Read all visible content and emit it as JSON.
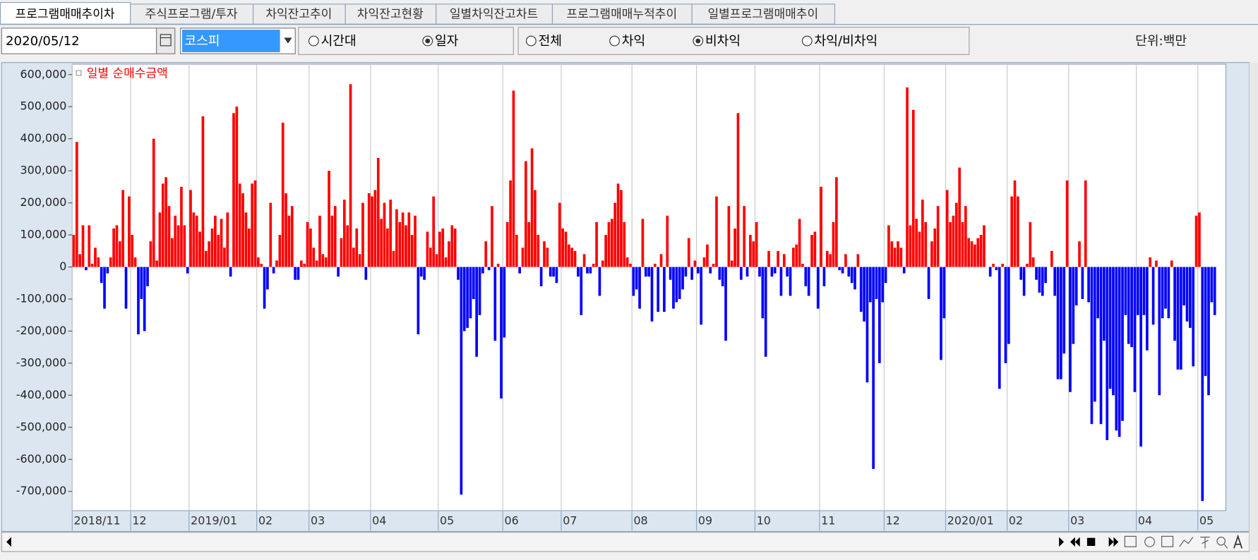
{
  "tabs": [
    "프로그램매매추이차",
    "주식프로그램/투자",
    "차익잔고추이",
    "차익잔고현황",
    "일별차익잔고차트",
    "프로그램매매누적추이",
    "일별프로그램매매추이"
  ],
  "toolbar": {
    "date": "2020/05/12",
    "market": "코스피",
    "mode_options": [
      {
        "label": "시간대",
        "selected": false
      },
      {
        "label": "일자",
        "selected": true
      }
    ],
    "type_options": [
      {
        "label": "전체",
        "selected": false
      },
      {
        "label": "차익",
        "selected": false
      },
      {
        "label": "비차익",
        "selected": true
      },
      {
        "label": "차익/비차익",
        "selected": false
      }
    ],
    "unit": "단위:백만"
  },
  "chart_data": {
    "type": "bar",
    "ylim": [
      -760000,
      632500
    ],
    "yticks": [
      {
        "value": 600000,
        "label": "600,000"
      },
      {
        "value": 500000,
        "label": "500,000"
      },
      {
        "value": 400000,
        "label": "400,000"
      },
      {
        "value": 300000,
        "label": "300,000"
      },
      {
        "value": 200000,
        "label": "200,000"
      },
      {
        "value": 100000,
        "label": "100,000"
      },
      0,
      {
        "value": -100000,
        "label": "-100,000"
      },
      {
        "value": -200000,
        "label": "-200,000"
      },
      {
        "value": -300000,
        "label": "-300,000"
      },
      {
        "value": -400000,
        "label": "-400,000"
      },
      {
        "value": -500000,
        "label": "-500,000"
      },
      {
        "value": -600000,
        "label": "-600,000"
      },
      {
        "value": -700000,
        "label": "-700,000"
      }
    ],
    "categories": [
      "2018/11",
      null,
      null,
      null,
      null,
      null,
      null,
      null,
      null,
      null,
      null,
      null,
      null,
      null,
      null,
      null,
      null,
      null,
      null,
      "12",
      null,
      null,
      null,
      null,
      null,
      null,
      null,
      null,
      null,
      null,
      null,
      null,
      null,
      null,
      null,
      null,
      null,
      null,
      "2019/01",
      null,
      null,
      null,
      null,
      null,
      null,
      null,
      null,
      null,
      null,
      null,
      null,
      null,
      null,
      null,
      null,
      null,
      null,
      null,
      null,
      null,
      "02",
      null,
      null,
      null,
      null,
      null,
      null,
      null,
      null,
      null,
      null,
      null,
      null,
      null,
      null,
      null,
      null,
      "03",
      null,
      null,
      null,
      null,
      null,
      null,
      null,
      null,
      null,
      null,
      null,
      null,
      null,
      null,
      null,
      null,
      null,
      null,
      null,
      "04",
      null,
      null,
      null,
      null,
      null,
      null,
      null,
      null,
      null,
      null,
      null,
      null,
      null,
      null,
      null,
      null,
      null,
      null,
      null,
      null,
      null,
      "05",
      null,
      null,
      null,
      null,
      null,
      null,
      null,
      null,
      null,
      null,
      null,
      null,
      null,
      null,
      null,
      null,
      null,
      null,
      null,
      null,
      "06",
      null,
      null,
      null,
      null,
      null,
      null,
      null,
      null,
      null,
      null,
      null,
      null,
      null,
      null,
      null,
      null,
      null,
      null,
      "07",
      null,
      null,
      null,
      null,
      null,
      null,
      null,
      null,
      null,
      null,
      null,
      null,
      null,
      null,
      null,
      null,
      null,
      null,
      null,
      null,
      null,
      null,
      "08",
      null,
      null,
      null,
      null,
      null,
      null,
      null,
      null,
      null,
      null,
      null,
      null,
      null,
      null,
      null,
      null,
      null,
      null,
      null,
      null,
      "09",
      null,
      null,
      null,
      null,
      null,
      null,
      null,
      null,
      null,
      null,
      null,
      null,
      null,
      null,
      null,
      null,
      null,
      null,
      "10",
      null,
      null,
      null,
      null,
      null,
      null,
      null,
      null,
      null,
      null,
      null,
      null,
      null,
      null,
      null,
      null,
      null,
      null,
      null,
      null,
      "11",
      null,
      null,
      null,
      null,
      null,
      null,
      null,
      null,
      null,
      null,
      null,
      null,
      null,
      null,
      null,
      null,
      null,
      null,
      null,
      null,
      "12",
      null,
      null,
      null,
      null,
      null,
      null,
      null,
      null,
      null,
      null,
      null,
      null,
      null,
      null,
      null,
      null,
      null,
      null,
      null,
      "2020/01",
      null,
      null,
      null,
      null,
      null,
      null,
      null,
      null,
      null,
      null,
      null,
      null,
      null,
      null,
      null,
      null,
      null,
      null,
      null,
      "02",
      null,
      null,
      null,
      null,
      null,
      null,
      null,
      null,
      null,
      null,
      null,
      null,
      null,
      null,
      null,
      null,
      null,
      null,
      null,
      "03",
      null,
      null,
      null,
      null,
      null,
      null,
      null,
      null,
      null,
      null,
      null,
      null,
      null,
      null,
      null,
      null,
      null,
      null,
      null,
      null,
      null,
      "04",
      null,
      null,
      null,
      null,
      null,
      null,
      null,
      null,
      null,
      null,
      null,
      null,
      null,
      null,
      null,
      null,
      null,
      null,
      null,
      "05",
      null,
      null,
      null,
      null,
      null
    ],
    "series": [
      {
        "name": "일별 순매수금액",
        "color": "#ff0000",
        "negative_color": "#0000ff",
        "values": [
          100000,
          390000,
          40000,
          130000,
          -10000,
          130000,
          10000,
          60000,
          30000,
          -50000,
          -130000,
          -20000,
          30000,
          120000,
          130000,
          80000,
          240000,
          -130000,
          220000,
          100000,
          30000,
          -210000,
          -100000,
          -200000,
          -60000,
          80000,
          400000,
          20000,
          170000,
          260000,
          280000,
          190000,
          90000,
          160000,
          130000,
          250000,
          130000,
          -20000,
          240000,
          170000,
          160000,
          110000,
          470000,
          50000,
          80000,
          120000,
          160000,
          100000,
          150000,
          60000,
          170000,
          -30000,
          480000,
          500000,
          260000,
          230000,
          170000,
          120000,
          260000,
          270000,
          30000,
          10000,
          -130000,
          -70000,
          200000,
          -20000,
          20000,
          100000,
          450000,
          230000,
          160000,
          190000,
          -40000,
          -40000,
          20000,
          10000,
          140000,
          120000,
          60000,
          20000,
          160000,
          40000,
          30000,
          300000,
          160000,
          190000,
          -30000,
          90000,
          210000,
          130000,
          570000,
          60000,
          120000,
          40000,
          200000,
          -40000,
          230000,
          220000,
          240000,
          340000,
          150000,
          200000,
          120000,
          210000,
          50000,
          180000,
          140000,
          170000,
          130000,
          170000,
          100000,
          160000,
          -210000,
          -30000,
          -40000,
          110000,
          60000,
          220000,
          40000,
          110000,
          120000,
          30000,
          80000,
          130000,
          120000,
          -40000,
          -710000,
          -200000,
          -190000,
          -160000,
          -100000,
          -280000,
          -150000,
          -20000,
          80000,
          -10000,
          190000,
          -230000,
          10000,
          -410000,
          -220000,
          140000,
          270000,
          550000,
          100000,
          -20000,
          60000,
          330000,
          140000,
          370000,
          240000,
          100000,
          -60000,
          80000,
          60000,
          -30000,
          -30000,
          -50000,
          200000,
          120000,
          110000,
          70000,
          60000,
          50000,
          -30000,
          -150000,
          40000,
          -20000,
          -20000,
          10000,
          140000,
          -90000,
          20000,
          100000,
          140000,
          150000,
          200000,
          260000,
          240000,
          140000,
          30000,
          10000,
          -90000,
          -70000,
          -130000,
          150000,
          -30000,
          -30000,
          -170000,
          10000,
          -140000,
          40000,
          -140000,
          160000,
          -40000,
          -130000,
          -110000,
          -100000,
          -70000,
          -30000,
          90000,
          -40000,
          20000,
          -20000,
          -180000,
          30000,
          70000,
          -20000,
          10000,
          220000,
          -40000,
          -60000,
          -230000,
          190000,
          20000,
          120000,
          480000,
          -40000,
          190000,
          -30000,
          100000,
          80000,
          140000,
          -30000,
          -160000,
          -280000,
          50000,
          -30000,
          -20000,
          50000,
          -90000,
          40000,
          -30000,
          -90000,
          60000,
          70000,
          150000,
          10000,
          -60000,
          -90000,
          100000,
          110000,
          -130000,
          250000,
          -60000,
          50000,
          40000,
          140000,
          280000,
          -10000,
          -20000,
          40000,
          -30000,
          -50000,
          -70000,
          40000,
          -140000,
          -170000,
          -360000,
          -110000,
          -630000,
          -100000,
          -300000,
          -110000,
          -50000,
          130000,
          80000,
          60000,
          80000,
          60000,
          -20000,
          560000,
          130000,
          490000,
          150000,
          110000,
          210000,
          140000,
          -100000,
          80000,
          120000,
          190000,
          -290000,
          -160000,
          240000,
          140000,
          160000,
          200000,
          310000,
          140000,
          190000,
          90000,
          80000,
          70000,
          90000,
          100000,
          130000,
          0,
          -30000,
          10000,
          -10000,
          -380000,
          10000,
          -300000,
          -240000,
          220000,
          270000,
          220000,
          -40000,
          -90000,
          10000,
          140000,
          30000,
          -40000,
          -80000,
          -90000,
          -50000,
          0,
          50000,
          -90000,
          -350000,
          -350000,
          -270000,
          270000,
          -390000,
          -240000,
          -120000,
          80000,
          -100000,
          270000,
          -110000,
          -490000,
          -420000,
          -160000,
          -490000,
          -230000,
          -540000,
          -380000,
          -400000,
          -510000,
          -530000,
          -480000,
          -150000,
          -240000,
          -250000,
          -390000,
          -150000,
          -560000,
          -150000,
          -260000,
          30000,
          -180000,
          20000,
          -400000,
          -160000,
          -130000,
          -160000,
          20000,
          -230000,
          -320000,
          -320000,
          -120000,
          -170000,
          -190000,
          -310000,
          160000,
          170000,
          -730000,
          -340000,
          -400000,
          -110000,
          -150000
        ]
      }
    ],
    "grid": true
  }
}
